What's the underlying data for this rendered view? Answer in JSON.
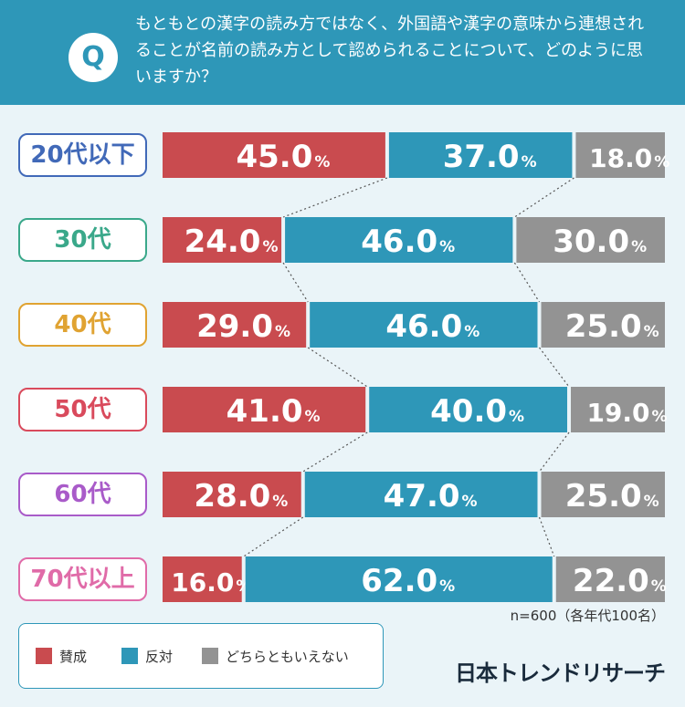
{
  "question": {
    "badge": "Q",
    "text": "もともとの漢字の読み方ではなく、外国語や漢字の意味から連想されることが名前の読み方として認められることについて、どのように思いますか？"
  },
  "chart_data": {
    "type": "bar",
    "orientation": "horizontal-stacked-100",
    "title": "もともとの漢字の読み方ではなく、外国語や漢字の意味から連想されることが名前の読み方として認められることについて、どのように思いますか？",
    "value_unit": "%",
    "categories": [
      "20代以下",
      "30代",
      "40代",
      "50代",
      "60代",
      "70代以上"
    ],
    "category_colors": [
      "#4169b8",
      "#3aa88a",
      "#e0a332",
      "#d94a5c",
      "#a95bc9",
      "#e06ba8"
    ],
    "series": [
      {
        "name": "賛成",
        "color": "#c94b4f",
        "values": [
          45.0,
          24.0,
          29.0,
          41.0,
          28.0,
          16.0
        ]
      },
      {
        "name": "反対",
        "color": "#2e97b8",
        "values": [
          37.0,
          46.0,
          46.0,
          40.0,
          47.0,
          62.0
        ]
      },
      {
        "name": "どちらともいえない",
        "color": "#939393",
        "values": [
          18.0,
          30.0,
          25.0,
          19.0,
          25.0,
          22.0
        ]
      }
    ]
  },
  "footnote": "n=600（各年代100名）",
  "brand": "日本トレンドリサーチ"
}
